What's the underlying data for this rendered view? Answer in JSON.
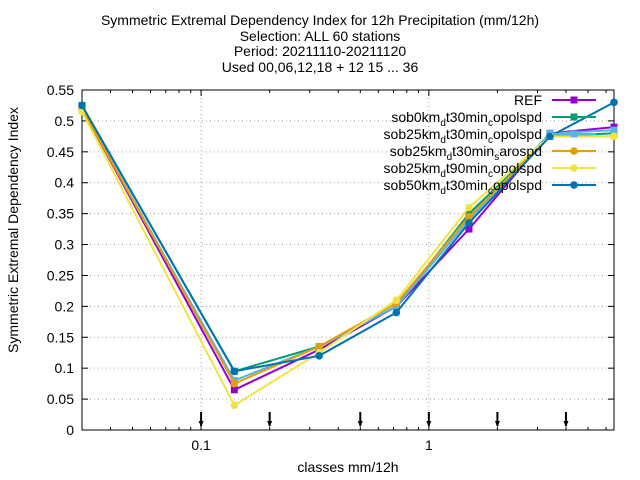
{
  "title_lines": [
    "Symmetric Extremal Dependency Index  for 12h Precipitation (mm/12h)",
    "Selection: ALL     60 stations",
    "Period: 20211110-20211120",
    "Used 00,06,12,18 + 12 15 ... 36"
  ],
  "chart_data": {
    "type": "line",
    "title": "Symmetric Extremal Dependency Index  for 12h Precipitation (mm/12h)",
    "xlabel": "classes mm/12h",
    "ylabel": "Symmetric Extremal Dependency Index",
    "x_scale": "log",
    "xlim": [
      0.03,
      6.5
    ],
    "ylim": [
      0,
      0.55
    ],
    "x_ticks": [
      0.1,
      1
    ],
    "x_tick_labels": [
      "0.1",
      "1"
    ],
    "y_ticks": [
      0,
      0.05,
      0.1,
      0.15,
      0.2,
      0.25,
      0.3,
      0.35,
      0.4,
      0.45,
      0.5,
      0.55
    ],
    "y_tick_labels": [
      "0",
      "0.05",
      "0.1",
      "0.15",
      "0.2",
      "0.25",
      "0.3",
      "0.35",
      "0.4",
      "0.45",
      "0.5",
      "0.55"
    ],
    "grid": true,
    "legend_position": "top-right",
    "class_markers_x": [
      0.1,
      0.2,
      0.5,
      1,
      2,
      4
    ],
    "series": [
      {
        "name": "REF",
        "color": "#9400d3",
        "marker": "square",
        "x": [
          0.03,
          0.14,
          0.33,
          0.72,
          1.5,
          3.4,
          6.5
        ],
        "y": [
          0.52,
          0.065,
          0.13,
          0.2,
          0.325,
          0.48,
          0.49
        ]
      },
      {
        "name": "sob0km_dt30min_copolspd",
        "color": "#009e73",
        "marker": "square",
        "x": [
          0.03,
          0.14,
          0.33,
          0.72,
          1.5,
          3.4,
          6.5
        ],
        "y": [
          0.525,
          0.095,
          0.135,
          0.2,
          0.35,
          0.475,
          0.48
        ]
      },
      {
        "name": "sob25km_dt30min_copolspd",
        "color": "#56b4e9",
        "marker": "square",
        "x": [
          0.03,
          0.14,
          0.33,
          0.72,
          1.5,
          3.4,
          6.5
        ],
        "y": [
          0.52,
          0.08,
          0.135,
          0.2,
          0.34,
          0.48,
          0.485
        ]
      },
      {
        "name": "sob25km_dt30min_sarospd",
        "color": "#e69f00",
        "marker": "circle",
        "x": [
          0.03,
          0.14,
          0.33,
          0.72,
          1.5,
          3.4,
          6.5
        ],
        "y": [
          0.52,
          0.075,
          0.135,
          0.205,
          0.345,
          0.475,
          0.475
        ]
      },
      {
        "name": "sob25km_dt90min_copolspd",
        "color": "#f0e442",
        "marker": "circle",
        "x": [
          0.03,
          0.14,
          0.33,
          0.72,
          1.5,
          3.4,
          6.5
        ],
        "y": [
          0.515,
          0.04,
          0.125,
          0.21,
          0.36,
          0.475,
          0.475
        ]
      },
      {
        "name": "sob50km_dt30min_copolspd",
        "color": "#0072b2",
        "marker": "circle",
        "x": [
          0.03,
          0.14,
          0.33,
          0.72,
          1.5,
          3.4,
          6.5
        ],
        "y": [
          0.525,
          0.095,
          0.12,
          0.19,
          0.335,
          0.475,
          0.53
        ]
      }
    ]
  },
  "legend_labels": [
    {
      "main": "REF",
      "sub": "",
      "tail": ""
    },
    {
      "main": "sob0km",
      "sub": "d",
      "tail": "t30min",
      "sub2": "c",
      "tail2": "opolspd"
    },
    {
      "main": "sob25km",
      "sub": "d",
      "tail": "t30min",
      "sub2": "c",
      "tail2": "opolspd"
    },
    {
      "main": "sob25km",
      "sub": "d",
      "tail": "t30min",
      "sub2": "s",
      "tail2": "arospd"
    },
    {
      "main": "sob25km",
      "sub": "d",
      "tail": "t90min",
      "sub2": "c",
      "tail2": "opolspd"
    },
    {
      "main": "sob50km",
      "sub": "d",
      "tail": "t30min",
      "sub2": "c",
      "tail2": "opolspd"
    }
  ]
}
